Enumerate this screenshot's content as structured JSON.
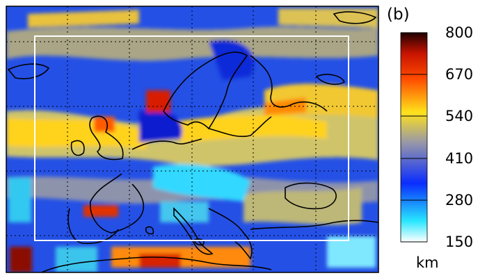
{
  "panel_label": "(b)",
  "colorbar": {
    "ticks": [
      "800",
      "670",
      "540",
      "410",
      "280",
      "150"
    ],
    "min": 150,
    "max": 800,
    "unit": "km",
    "stops": [
      "#ffffff",
      "#28e6ff",
      "#0a2dff",
      "#9b9aa4",
      "#ffe21a",
      "#ff4a00",
      "#c81400",
      "#1e0000"
    ]
  },
  "map": {
    "frame_color": "#000000",
    "inner_box_color": "#ffffff",
    "coastline_color": "#000000",
    "grid_line_style": "dotted"
  }
}
